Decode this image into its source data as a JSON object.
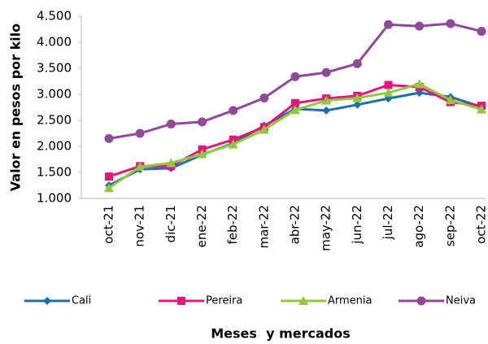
{
  "chart_data": {
    "type": "line",
    "y_label": "Valor en pesos por kilo",
    "x_label": "Meses  y mercados",
    "categories": [
      "oct-21",
      "nov-21",
      "dic-21",
      "ene-22",
      "feb-22",
      "mar-22",
      "abr-22",
      "may-22",
      "jun-22",
      "jul-22",
      "ago-22",
      "sep-22",
      "oct-22"
    ],
    "series": [
      {
        "name": "Cali",
        "color": "#1f6fa8",
        "marker": "diamond",
        "values": [
          1250,
          1560,
          1580,
          1840,
          2060,
          2400,
          2720,
          2690,
          2800,
          2920,
          3030,
          2950,
          2760
        ]
      },
      {
        "name": "Pereira",
        "color": "#e6157a",
        "marker": "square",
        "values": [
          1420,
          1620,
          1620,
          1940,
          2130,
          2370,
          2830,
          2920,
          2970,
          3180,
          3140,
          2850,
          2780
        ]
      },
      {
        "name": "Armenia",
        "color": "#92c83e",
        "marker": "triangle",
        "values": [
          1200,
          1610,
          1680,
          1850,
          2040,
          2320,
          2700,
          2880,
          2930,
          3030,
          3200,
          2890,
          2710
        ]
      },
      {
        "name": "Neiva",
        "color": "#8e4a97",
        "marker": "circle",
        "values": [
          2150,
          2250,
          2430,
          2470,
          2690,
          2930,
          3340,
          3420,
          3590,
          4340,
          4310,
          4360,
          4210
        ]
      }
    ],
    "ylim": [
      1000,
      4500
    ],
    "yticks": [
      {
        "value": 1000,
        "label": "1.000"
      },
      {
        "value": 1500,
        "label": "1.500"
      },
      {
        "value": 2000,
        "label": "2.000"
      },
      {
        "value": 2500,
        "label": "2.500"
      },
      {
        "value": 3000,
        "label": "3.000"
      },
      {
        "value": 3500,
        "label": "3.500"
      },
      {
        "value": 4000,
        "label": "4.000"
      },
      {
        "value": 4500,
        "label": "4.500"
      }
    ],
    "legend": "bottom"
  }
}
